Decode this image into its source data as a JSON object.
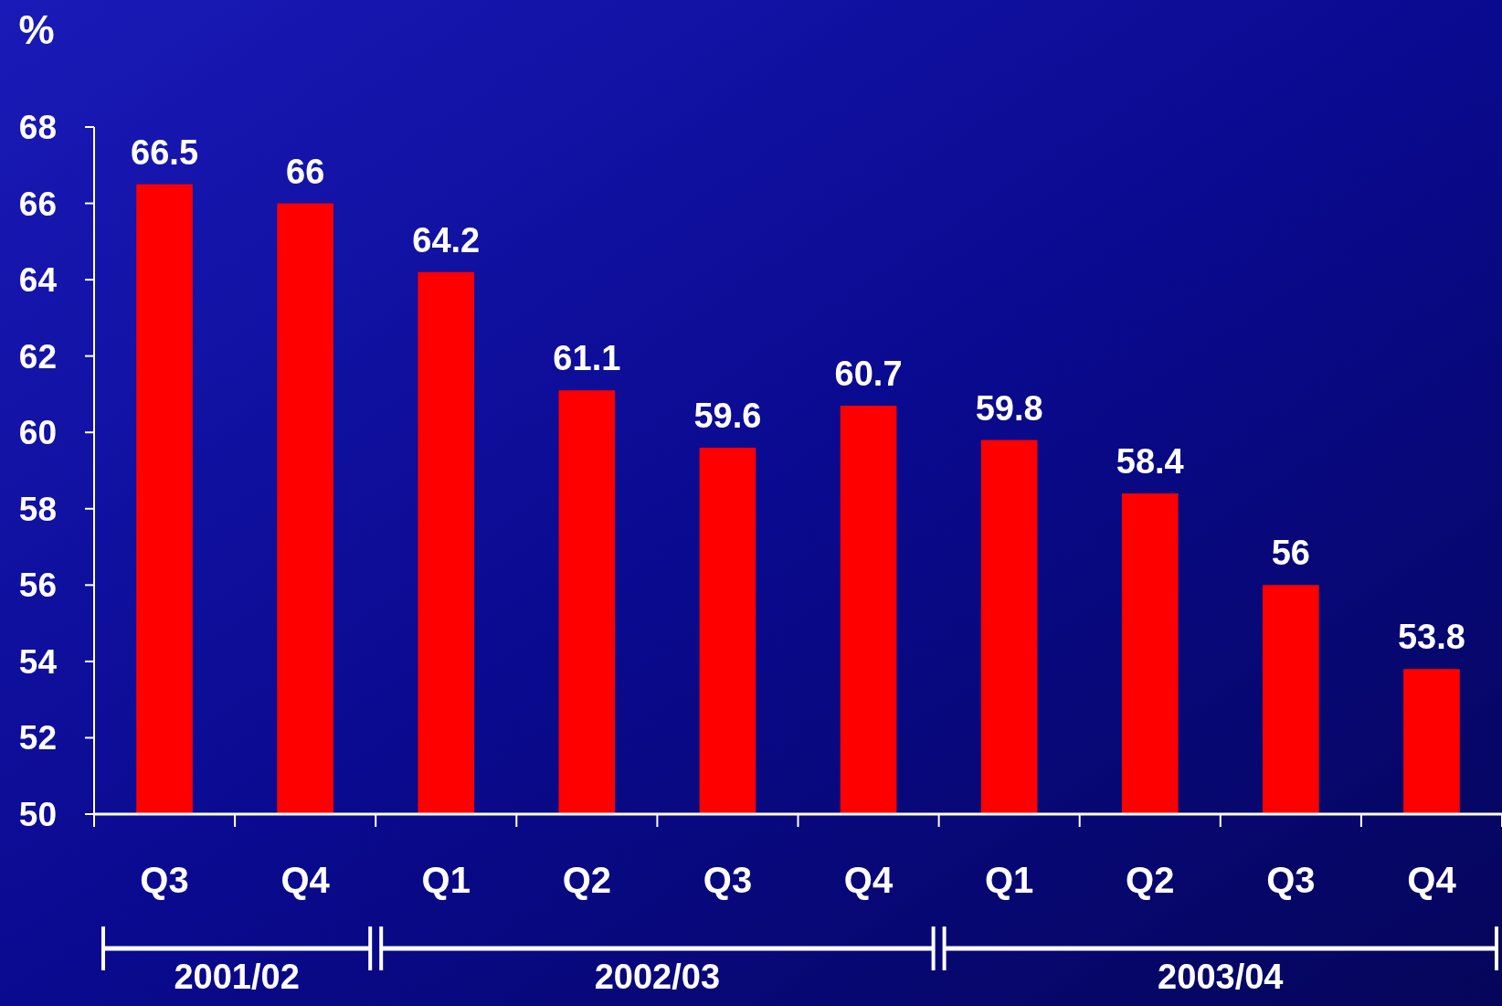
{
  "chart_data": {
    "type": "bar",
    "ylabel": "%",
    "categories": [
      "Q3",
      "Q4",
      "Q1",
      "Q2",
      "Q3",
      "Q4",
      "Q1",
      "Q2",
      "Q3",
      "Q4"
    ],
    "values": [
      66.5,
      66,
      64.2,
      61.1,
      59.6,
      60.7,
      59.8,
      58.4,
      56,
      53.8
    ],
    "color": "#ff0000",
    "ylim": [
      50,
      68
    ],
    "yticks": [
      50,
      52,
      54,
      56,
      58,
      60,
      62,
      64,
      66,
      68
    ],
    "data_labels": true,
    "grid": false,
    "annotations": [
      "2001/02",
      "2002/03",
      "2003/04"
    ]
  }
}
